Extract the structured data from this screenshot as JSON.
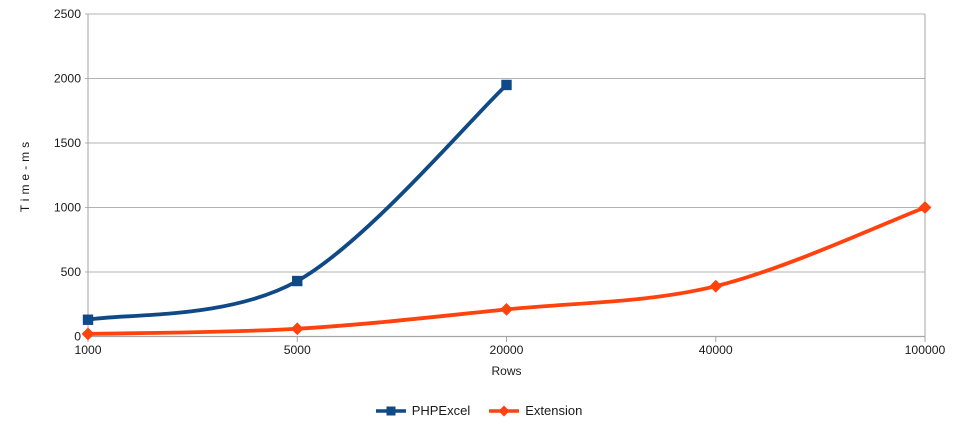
{
  "chart_data": {
    "type": "line",
    "title": "",
    "xlabel": "Rows",
    "ylabel": "Time-ms",
    "categories": [
      "1000",
      "5000",
      "20000",
      "40000",
      "100000"
    ],
    "series": [
      {
        "name": "PHPExcel",
        "color": "#0f4a86",
        "marker": "square",
        "values": [
          130,
          430,
          1950,
          null,
          null
        ]
      },
      {
        "name": "Extension",
        "color": "#ff420e",
        "marker": "diamond",
        "values": [
          20,
          60,
          210,
          390,
          1000
        ]
      }
    ],
    "y_ticks": [
      0,
      500,
      1000,
      1500,
      2000,
      2500
    ],
    "ylim": [
      0,
      2500
    ],
    "grid": true,
    "smooth_lines": true,
    "legend_position": "bottom"
  },
  "style": {
    "grid_color": "#b3b3b3",
    "axis_color": "#a6a6a6",
    "text_color": "#1a1a1a",
    "background": "#ffffff"
  }
}
